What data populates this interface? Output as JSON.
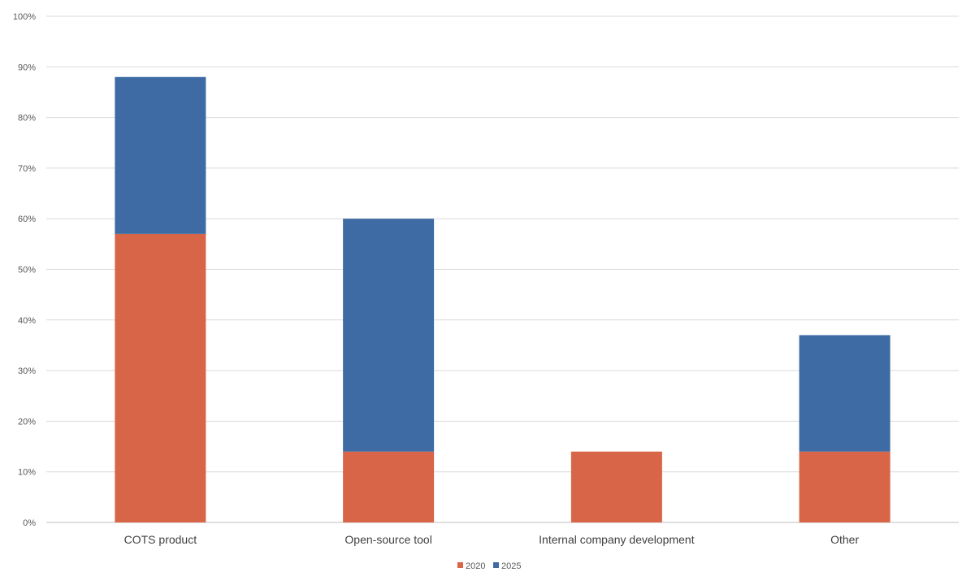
{
  "chart_data": {
    "type": "bar",
    "stacked": true,
    "categories": [
      "COTS product",
      "Open-source tool",
      "Internal company development",
      "Other"
    ],
    "series": [
      {
        "name": "2020",
        "color": "#D86547",
        "values": [
          57,
          14,
          14,
          14
        ]
      },
      {
        "name": "2025",
        "color": "#3E6BA3",
        "values": [
          31,
          46,
          0,
          23
        ]
      }
    ],
    "ylim": [
      0,
      100
    ],
    "y_ticks": [
      "0%",
      "10%",
      "20%",
      "30%",
      "40%",
      "50%",
      "60%",
      "70%",
      "80%",
      "90%",
      "100%"
    ],
    "grid": true,
    "legend": "bottom"
  }
}
